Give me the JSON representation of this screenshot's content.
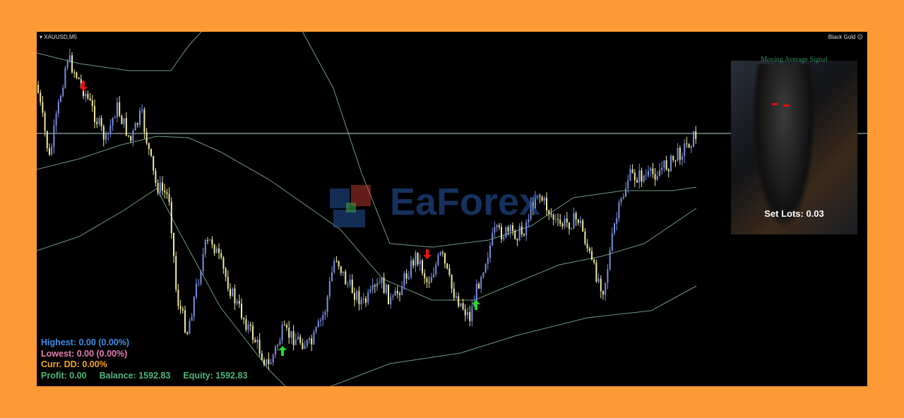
{
  "chart": {
    "symbol": "XAUUSD,M5",
    "brand": "Black Gold",
    "bull_color": "#7b8fe0",
    "bear_color": "#f0eaa0",
    "band_color": "#6f9a80",
    "hline_color": "#b8d8e0"
  },
  "watermark": {
    "text": "EaForex"
  },
  "panel": {
    "title": "Moving Average Signal",
    "lots": "Set Lots: 0.03"
  },
  "stats": {
    "highest": "Highest: 0.00 (0.00%)",
    "lowest": "Lowest: 0.00 (0.00%)",
    "curr_dd": "Curr. DD: 0.00%",
    "profit": "Profit: 0.00",
    "balance": "Balance:  1592.83",
    "equity": "Equity:  1592.83",
    "colors": {
      "highest": "#3d8fe8",
      "lowest": "#e87fb0",
      "curr_dd": "#f5a623",
      "footer": "#4fb87a"
    }
  },
  "signals": [
    {
      "type": "sell",
      "icon": "arrow-down-icon"
    },
    {
      "type": "buy",
      "icon": "arrow-up-icon"
    },
    {
      "type": "sell",
      "icon": "arrow-down-icon"
    },
    {
      "type": "buy",
      "icon": "arrow-up-icon"
    }
  ]
}
